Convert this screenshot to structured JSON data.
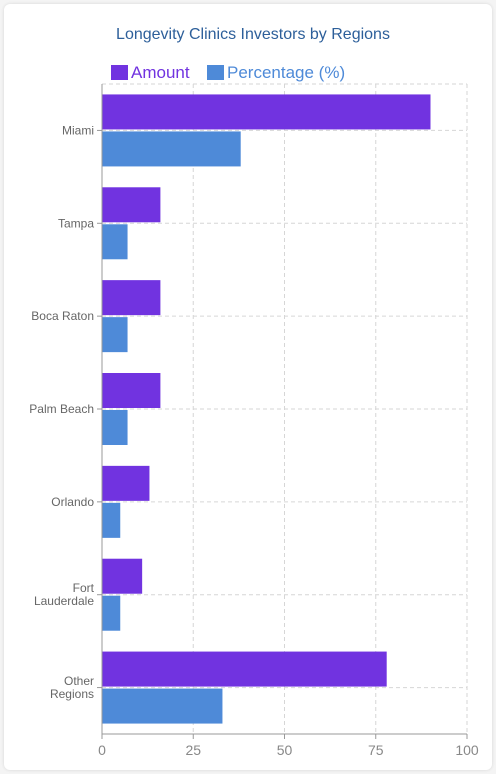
{
  "chart_data": {
    "type": "bar",
    "orientation": "horizontal",
    "title": "Longevity Clinics Investors by Regions",
    "categories": [
      [
        "Miami"
      ],
      [
        "Tampa"
      ],
      [
        "Boca Raton"
      ],
      [
        "Palm Beach"
      ],
      [
        "Orlando"
      ],
      [
        "Fort",
        "Lauderdale"
      ],
      [
        "Other",
        "Regions"
      ]
    ],
    "series": [
      {
        "name": "Amount",
        "color": "#7133e0",
        "values": [
          90,
          16,
          16,
          16,
          13,
          11,
          78
        ]
      },
      {
        "name": "Percentage (%)",
        "color": "#4e8ad8",
        "values": [
          38,
          7,
          7,
          7,
          5,
          5,
          33
        ]
      }
    ],
    "xlim": [
      0,
      100
    ],
    "xticks": [
      "0",
      "25",
      "50",
      "75",
      "100"
    ],
    "grid": true,
    "legend_position": "top-center"
  }
}
